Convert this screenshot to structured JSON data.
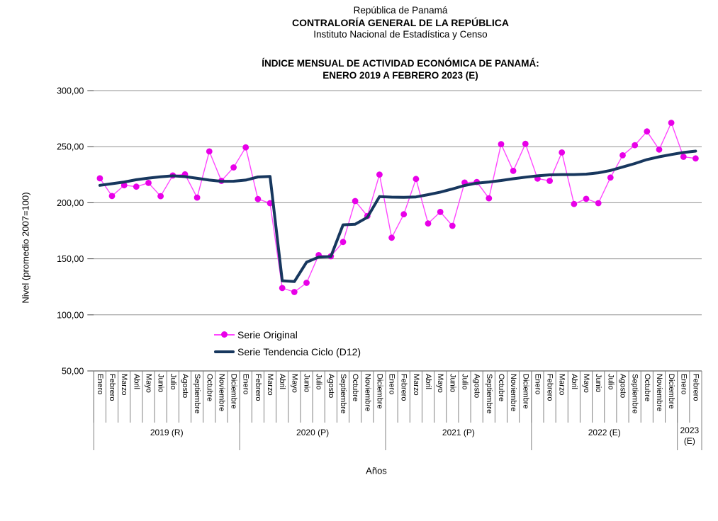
{
  "header": {
    "line1": "República de Panamá",
    "line2": "CONTRALORÍA GENERAL DE LA REPÚBLICA",
    "line3": "Instituto Nacional de Estadística y Censo"
  },
  "title": {
    "line1": "ÍNDICE MENSUAL DE ACTIVIDAD ECONÓMICA DE PANAMÁ:",
    "line2": "ENERO 2019 A FEBRERO 2023 (E)"
  },
  "chart_data": {
    "type": "line",
    "title": "ÍNDICE MENSUAL DE ACTIVIDAD ECONÓMICA DE PANAMÁ: ENERO 2019 A FEBRERO 2023 (E)",
    "ylabel": "Nivel (promedio 2007=100)",
    "xlabel": "Años",
    "ylim": [
      50,
      300
    ],
    "ytick_step": 50,
    "ytick_labels": [
      "50,00",
      "100,00",
      "150,00",
      "200,00",
      "250,00",
      "300,00"
    ],
    "grid": true,
    "legend_position": "inside-bottom-left",
    "months": [
      "Enero",
      "Febrero",
      "Marzo",
      "Abril",
      "Mayo",
      "Junio",
      "Julio",
      "Agosto",
      "Septiembre",
      "Octubre",
      "Noviembre",
      "Diciembre",
      "Enero",
      "Febrero",
      "Marzo",
      "Abril",
      "Mayo",
      "Junio",
      "Julio",
      "Agosto",
      "Septiembre",
      "Octubre",
      "Noviembre",
      "Diciembre",
      "Enero",
      "Febrero",
      "Marzo",
      "Abril",
      "Mayo",
      "Junio",
      "Julio",
      "Agosto",
      "Septiembre",
      "Octubre",
      "Noviembre",
      "Diciembre",
      "Enero",
      "Febrero",
      "Marzo",
      "Abril",
      "Mayo",
      "Junio",
      "Julio",
      "Agosto",
      "Septiembre",
      "Octubre",
      "Noviembre",
      "Diciembre",
      "Enero",
      "Febrero"
    ],
    "year_groups": [
      {
        "label": "2019 (R)",
        "lines": [
          "2019 (R)"
        ],
        "months": 12
      },
      {
        "label": "2020 (P)",
        "lines": [
          "2020 (P)"
        ],
        "months": 12
      },
      {
        "label": "2021 (P)",
        "lines": [
          "2021 (P)"
        ],
        "months": 12
      },
      {
        "label": "2022 (E)",
        "lines": [
          "2022 (E)"
        ],
        "months": 12
      },
      {
        "label": "2023 (E)",
        "lines": [
          "2023",
          "(E)"
        ],
        "months": 2
      }
    ],
    "series": [
      {
        "name": "Serie Original",
        "line_color": "#FF47FF",
        "marker_color": "#E800E8",
        "marker": true,
        "values": [
          221.8,
          206.0,
          215.6,
          214.3,
          217.7,
          205.9,
          224.3,
          225.3,
          204.6,
          245.8,
          219.5,
          231.5,
          249.4,
          203.3,
          199.6,
          123.9,
          120.4,
          128.6,
          153.3,
          152.3,
          165.0,
          201.5,
          188.2,
          225.1,
          168.8,
          189.7,
          221.2,
          181.5,
          191.8,
          179.4,
          218.0,
          218.5,
          204.0,
          252.3,
          228.4,
          252.5,
          221.5,
          219.5,
          244.8,
          198.9,
          203.5,
          199.6,
          222.5,
          242.3,
          251.3,
          263.6,
          247.4,
          271.3,
          241.0,
          239.5
        ]
      },
      {
        "name": "Serie Tendencia Ciclo (D12)",
        "line_color": "#17375E",
        "marker": false,
        "values": [
          215.5,
          217.0,
          218.5,
          220.5,
          222.0,
          223.2,
          224.0,
          223.3,
          221.8,
          220.2,
          219.1,
          219.2,
          220.2,
          223.0,
          223.5,
          130.4,
          129.7,
          147.0,
          151.5,
          152.0,
          180.3,
          180.8,
          187.0,
          205.5,
          205.0,
          204.8,
          205.2,
          207.2,
          209.5,
          212.3,
          215.4,
          217.5,
          218.5,
          219.8,
          221.4,
          222.8,
          224.0,
          224.9,
          225.1,
          225.1,
          225.5,
          226.7,
          228.8,
          231.9,
          235.0,
          238.5,
          241.0,
          243.0,
          244.8,
          246.0
        ]
      }
    ],
    "colors": {
      "gridline": "#909090",
      "axis": "#404040",
      "category_tick": "#808080",
      "text": "#000000"
    }
  }
}
